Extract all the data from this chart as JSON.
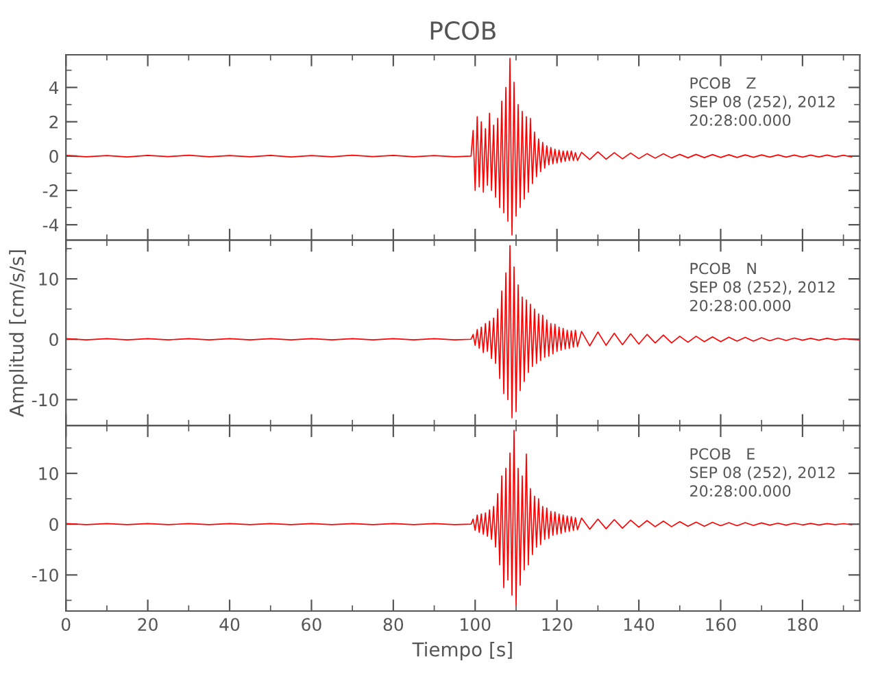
{
  "chart_data": [
    {
      "type": "line",
      "title": "PCOB",
      "annotations": [
        "PCOB   Z",
        "SEP 08 (252), 2012",
        "20:28:00.000"
      ],
      "xlim": [
        0,
        194
      ],
      "xticks": [
        0,
        20,
        40,
        60,
        80,
        100,
        120,
        140,
        160,
        180
      ],
      "ylim": [
        -4.9,
        5.9
      ],
      "yticks": [
        -4,
        -2,
        0,
        2,
        4
      ],
      "tick_labels": "y",
      "grid": false,
      "legend": false,
      "x": [
        0,
        5,
        10,
        15,
        20,
        25,
        30,
        35,
        40,
        45,
        50,
        55,
        60,
        65,
        70,
        75,
        80,
        85,
        90,
        95,
        99,
        99.5,
        100,
        100.5,
        101,
        101.5,
        102,
        102.5,
        103,
        103.5,
        104,
        104.5,
        105,
        105.5,
        106,
        106.5,
        107,
        107.5,
        108,
        108.5,
        109,
        109.5,
        110,
        110.5,
        111,
        111.5,
        112,
        112.5,
        113,
        113.5,
        114,
        114.5,
        115,
        115.5,
        116,
        116.5,
        117,
        117.5,
        118,
        118.5,
        119,
        119.5,
        120,
        120.5,
        121,
        121.5,
        122,
        122.5,
        123,
        123.5,
        124,
        124.5,
        125,
        126,
        128,
        130,
        132,
        134,
        136,
        138,
        140,
        142,
        144,
        146,
        148,
        150,
        152,
        154,
        156,
        158,
        160,
        162,
        164,
        166,
        168,
        170,
        172,
        174,
        176,
        178,
        180,
        182,
        184,
        186,
        188,
        190,
        192
      ],
      "series": [
        {
          "color": "#ff0000",
          "values": [
            0.04,
            -0.04,
            0.03,
            -0.05,
            0.04,
            -0.03,
            0.05,
            -0.04,
            0.03,
            -0.04,
            0.04,
            -0.05,
            0.03,
            -0.04,
            0.05,
            -0.03,
            0.04,
            -0.04,
            0.03,
            -0.04,
            0,
            1.5,
            -2.0,
            2.3,
            -1.8,
            2.0,
            -2.1,
            1.6,
            -1.7,
            2.5,
            -2.0,
            1.8,
            -2.4,
            2.2,
            -3.0,
            3.2,
            -3.3,
            4.0,
            -3.8,
            5.7,
            -4.6,
            4.3,
            -3.5,
            3.0,
            -3.0,
            2.6,
            -2.5,
            2.3,
            -2.1,
            2.2,
            -1.6,
            1.4,
            -1.2,
            1.0,
            -0.9,
            0.8,
            -0.7,
            0.6,
            -0.5,
            0.5,
            -0.45,
            0.4,
            -0.4,
            0.35,
            -0.35,
            0.3,
            -0.3,
            0.3,
            -0.25,
            0.3,
            -0.25,
            0.2,
            -0.25,
            0.22,
            -0.2,
            0.25,
            -0.18,
            0.2,
            -0.16,
            0.18,
            -0.15,
            0.14,
            -0.12,
            0.13,
            -0.11,
            0.1,
            -0.1,
            0.1,
            -0.09,
            0.09,
            -0.08,
            0.08,
            -0.08,
            0.07,
            -0.07,
            0.07,
            -0.06,
            0.07,
            -0.06,
            0.06,
            -0.06,
            0.06,
            -0.05,
            0.06,
            -0.05,
            0.05,
            -0.05
          ]
        }
      ]
    },
    {
      "type": "line",
      "ylabel": "Amplitud [cm/s/s]",
      "annotations": [
        "PCOB   N",
        "SEP 08 (252), 2012",
        "20:28:00.000"
      ],
      "xlim": [
        0,
        194
      ],
      "xticks": [
        0,
        20,
        40,
        60,
        80,
        100,
        120,
        140,
        160,
        180
      ],
      "ylim": [
        -14.3,
        16.4
      ],
      "yticks": [
        -10,
        0,
        10
      ],
      "tick_labels": "y",
      "grid": false,
      "legend": false,
      "x": [
        0,
        5,
        10,
        15,
        20,
        25,
        30,
        35,
        40,
        45,
        50,
        55,
        60,
        65,
        70,
        75,
        80,
        85,
        90,
        95,
        99,
        99.5,
        100,
        100.5,
        101,
        101.5,
        102,
        102.5,
        103,
        103.5,
        104,
        104.5,
        105,
        105.5,
        106,
        106.5,
        107,
        107.5,
        108,
        108.5,
        109,
        109.5,
        110,
        110.5,
        111,
        111.5,
        112,
        112.5,
        113,
        113.5,
        114,
        114.5,
        115,
        115.5,
        116,
        116.5,
        117,
        117.5,
        118,
        118.5,
        119,
        119.5,
        120,
        120.5,
        121,
        121.5,
        122,
        122.5,
        123,
        123.5,
        124,
        124.5,
        125,
        126,
        128,
        130,
        132,
        134,
        136,
        138,
        140,
        142,
        144,
        146,
        148,
        150,
        152,
        154,
        156,
        158,
        160,
        162,
        164,
        166,
        168,
        170,
        172,
        174,
        176,
        178,
        180,
        182,
        184,
        186,
        188,
        190,
        194
      ],
      "series": [
        {
          "color": "#ff0000",
          "values": [
            0.1,
            -0.1,
            0.1,
            -0.1,
            0.1,
            -0.1,
            0.1,
            -0.1,
            0.1,
            -0.1,
            0.1,
            -0.1,
            0.1,
            -0.1,
            0.1,
            -0.1,
            0.1,
            -0.1,
            0.1,
            -0.1,
            0,
            0.8,
            -1.0,
            1.6,
            -1.5,
            2.0,
            -2.2,
            2.6,
            -2.0,
            3.0,
            -3.2,
            3.5,
            -4.0,
            5.0,
            -6.5,
            8.0,
            -9.0,
            11.0,
            -10.0,
            15.5,
            -13.0,
            12.0,
            -12.0,
            9.0,
            -8.5,
            7.0,
            -7.0,
            6.5,
            -5.5,
            5.8,
            -4.5,
            5.0,
            -4.0,
            4.2,
            -3.5,
            4.0,
            -3.0,
            3.2,
            -2.8,
            2.6,
            -2.4,
            2.5,
            -2.0,
            2.0,
            -1.8,
            1.8,
            -1.6,
            1.5,
            -1.5,
            1.4,
            -1.3,
            1.5,
            -1.2,
            1.3,
            -1.1,
            1.2,
            -1.0,
            1.0,
            -0.9,
            0.9,
            -0.8,
            0.8,
            -0.6,
            0.7,
            -0.6,
            0.5,
            -0.5,
            0.5,
            -0.4,
            0.4,
            -0.4,
            0.35,
            -0.3,
            0.3,
            -0.3,
            0.25,
            -0.25,
            0.2,
            -0.2,
            0.2,
            -0.15,
            0.15,
            -0.15,
            0.15,
            -0.1,
            0.1,
            -0.1
          ]
        }
      ]
    },
    {
      "type": "line",
      "xlabel": "Tiempo [s]",
      "annotations": [
        "PCOB   E",
        "SEP 08 (252), 2012",
        "20:28:00.000"
      ],
      "xlim": [
        0,
        194
      ],
      "xticks": [
        0,
        20,
        40,
        60,
        80,
        100,
        120,
        140,
        160,
        180
      ],
      "ylim": [
        -17.1,
        19.4
      ],
      "yticks": [
        -10,
        0,
        10
      ],
      "grid": false,
      "legend": false,
      "x": [
        0,
        5,
        10,
        15,
        20,
        25,
        30,
        35,
        40,
        45,
        50,
        55,
        60,
        65,
        70,
        75,
        80,
        85,
        90,
        95,
        99,
        99.5,
        100,
        100.5,
        101,
        101.5,
        102,
        102.5,
        103,
        103.5,
        104,
        104.5,
        105,
        105.5,
        106,
        106.5,
        107,
        107.5,
        108,
        108.5,
        109,
        109.5,
        110,
        110.5,
        111,
        111.5,
        112,
        112.5,
        113,
        113.5,
        114,
        114.5,
        115,
        115.5,
        116,
        116.5,
        117,
        117.5,
        118,
        118.5,
        119,
        119.5,
        120,
        120.5,
        121,
        121.5,
        122,
        122.5,
        123,
        123.5,
        124,
        124.5,
        125,
        126,
        128,
        130,
        132,
        134,
        136,
        138,
        140,
        142,
        144,
        146,
        148,
        150,
        152,
        154,
        156,
        158,
        160,
        162,
        164,
        166,
        168,
        170,
        172,
        174,
        176,
        178,
        180,
        182,
        184,
        186,
        188,
        190,
        192
      ],
      "series": [
        {
          "color": "#ff0000",
          "values": [
            0.1,
            -0.1,
            0.1,
            -0.1,
            0.1,
            -0.1,
            0.1,
            -0.1,
            0.1,
            -0.1,
            0.1,
            -0.1,
            0.1,
            -0.1,
            0.1,
            -0.1,
            0.1,
            -0.1,
            0.1,
            -0.1,
            0,
            1.0,
            -1.2,
            1.8,
            -1.6,
            2.0,
            -2.0,
            2.2,
            -2.4,
            2.8,
            -3.0,
            3.5,
            -4.5,
            6.0,
            -8.0,
            9.5,
            -12.5,
            11.0,
            -11.0,
            14.0,
            -14.0,
            18.5,
            -16.0,
            11.0,
            -12.0,
            9.5,
            -9.0,
            13.8,
            -8.0,
            7.0,
            -6.0,
            5.5,
            -4.5,
            5.0,
            -4.0,
            3.5,
            -3.0,
            3.2,
            -2.8,
            2.5,
            -2.2,
            2.4,
            -2.0,
            2.0,
            -1.8,
            1.8,
            -1.5,
            1.6,
            -1.4,
            1.5,
            -1.2,
            1.3,
            -1.1,
            1.2,
            -1.0,
            1.0,
            -0.9,
            0.9,
            -0.8,
            0.8,
            -0.6,
            0.7,
            -0.5,
            0.6,
            -0.5,
            0.5,
            -0.4,
            0.4,
            -0.4,
            0.35,
            -0.3,
            0.3,
            -0.3,
            0.3,
            -0.25,
            0.25,
            -0.2,
            0.2,
            -0.2,
            0.2,
            -0.15,
            0.15,
            -0.15,
            0.12,
            -0.1,
            0.1,
            -0.1
          ]
        }
      ]
    }
  ]
}
